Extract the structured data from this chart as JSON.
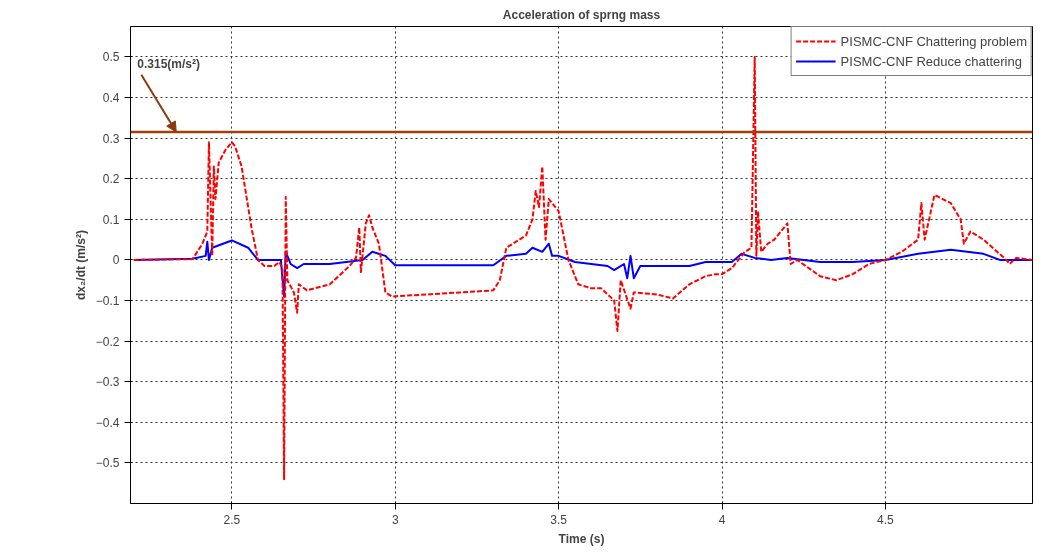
{
  "chart_data": {
    "type": "line",
    "title": "Acceleration of sprng mass",
    "xlabel": "Time (s)",
    "ylabel": "dx₂/dt (m/s²)",
    "xlim": [
      2.19,
      4.95
    ],
    "ylim": [
      -0.6,
      0.575
    ],
    "xticks": [
      2.5,
      3,
      3.5,
      4,
      4.5
    ],
    "yticks": [
      -0.5,
      -0.4,
      -0.3,
      -0.2,
      -0.1,
      0,
      0.1,
      0.2,
      0.3,
      0.4,
      0.5
    ],
    "grid": true,
    "legend": "top right",
    "marker": "none",
    "ref_lines": [
      {
        "axis": "y",
        "value": 0.315,
        "color": "#a0410d",
        "line_style": "solid"
      }
    ],
    "annotations": [
      {
        "text": "0.315(m/s²)",
        "x": 2.33,
        "y": 0.315
      }
    ],
    "series": [
      {
        "name": "PISMC-CNF Chattering problem",
        "color": "#ff0000",
        "line_style": "dashed",
        "x": [
          2.2,
          2.38,
          2.41,
          2.425,
          2.43,
          2.44,
          2.445,
          2.45,
          2.46,
          2.48,
          2.5,
          2.51,
          2.53,
          2.56,
          2.58,
          2.6,
          2.63,
          2.645,
          2.655,
          2.66,
          2.665,
          2.67,
          2.69,
          2.7,
          2.705,
          2.73,
          2.8,
          2.86,
          2.88,
          2.89,
          2.895,
          2.91,
          2.92,
          2.93,
          2.95,
          2.97,
          2.99,
          3.1,
          3.2,
          3.3,
          3.32,
          3.34,
          3.4,
          3.42,
          3.43,
          3.44,
          3.45,
          3.46,
          3.47,
          3.5,
          3.53,
          3.56,
          3.6,
          3.63,
          3.67,
          3.68,
          3.69,
          3.72,
          3.73,
          3.8,
          3.85,
          3.9,
          3.95,
          3.98,
          4.0,
          4.03,
          4.05,
          4.07,
          4.09,
          4.1,
          4.105,
          4.11,
          4.12,
          4.14,
          4.16,
          4.2,
          4.21,
          4.23,
          4.3,
          4.35,
          4.4,
          4.45,
          4.5,
          4.55,
          4.6,
          4.61,
          4.62,
          4.65,
          4.7,
          4.73,
          4.74,
          4.76,
          4.8,
          4.87,
          4.88,
          4.9,
          4.95
        ],
        "values": [
          0,
          0.002,
          0.04,
          0.07,
          0.29,
          0.01,
          0.23,
          0.15,
          0.24,
          0.27,
          0.29,
          0.28,
          0.23,
          0.08,
          0.0,
          -0.015,
          -0.015,
          -0.005,
          -0.02,
          -0.54,
          0.155,
          -0.05,
          -0.08,
          -0.13,
          -0.06,
          -0.075,
          -0.06,
          -0.015,
          0.005,
          0.08,
          -0.03,
          0.09,
          0.11,
          0.08,
          0.04,
          -0.08,
          -0.09,
          -0.085,
          -0.08,
          -0.075,
          -0.05,
          0.03,
          0.06,
          0.1,
          0.17,
          0.13,
          0.23,
          0.05,
          0.15,
          0.12,
          0.0,
          -0.06,
          -0.07,
          -0.07,
          -0.1,
          -0.175,
          -0.05,
          -0.12,
          -0.08,
          -0.085,
          -0.095,
          -0.06,
          -0.04,
          -0.035,
          -0.035,
          -0.02,
          0.0,
          0.02,
          0.03,
          0.5,
          0.01,
          0.12,
          0.02,
          0.04,
          0.05,
          0.09,
          -0.01,
          0.0,
          -0.04,
          -0.05,
          -0.035,
          -0.01,
          0.0,
          0.02,
          0.05,
          0.14,
          0.05,
          0.16,
          0.14,
          0.1,
          0.04,
          0.07,
          0.05,
          0.0,
          -0.01,
          0.005,
          0.0
        ]
      },
      {
        "name": "PISMC-CNF Reduce chattering",
        "color": "#0000ff",
        "line_style": "solid",
        "x": [
          2.2,
          2.38,
          2.42,
          2.425,
          2.43,
          2.44,
          2.5,
          2.55,
          2.58,
          2.65,
          2.66,
          2.665,
          2.68,
          2.7,
          2.72,
          2.8,
          2.9,
          2.93,
          2.97,
          3.0,
          3.1,
          3.3,
          3.34,
          3.4,
          3.42,
          3.45,
          3.47,
          3.48,
          3.5,
          3.55,
          3.65,
          3.67,
          3.7,
          3.71,
          3.72,
          3.73,
          3.75,
          3.9,
          3.95,
          4.03,
          4.06,
          4.1,
          4.15,
          4.2,
          4.3,
          4.4,
          4.5,
          4.6,
          4.7,
          4.8,
          4.85,
          4.95
        ],
        "values": [
          0,
          0.003,
          0.01,
          0.045,
          0.0,
          0.03,
          0.048,
          0.03,
          0.0,
          0.0,
          -0.09,
          0.02,
          -0.01,
          -0.02,
          -0.01,
          -0.01,
          0.0,
          0.02,
          0.01,
          -0.013,
          -0.013,
          -0.013,
          0.01,
          0.015,
          0.03,
          0.02,
          0.04,
          0.01,
          0.01,
          -0.005,
          -0.015,
          -0.025,
          -0.01,
          -0.045,
          0.01,
          -0.045,
          -0.015,
          -0.015,
          -0.005,
          -0.005,
          0.015,
          0.005,
          0.0,
          0.005,
          -0.005,
          -0.005,
          0.0,
          0.015,
          0.025,
          0.015,
          0.0,
          0.0
        ]
      }
    ]
  }
}
